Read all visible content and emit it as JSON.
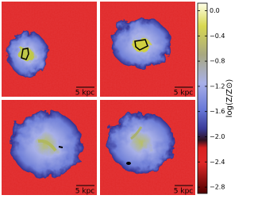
{
  "chart_data": {
    "type": "heatmap",
    "panels": [
      {
        "scale_bar": "5 kpc"
      },
      {
        "scale_bar": "5 kpc"
      },
      {
        "scale_bar": "5 kpc"
      },
      {
        "scale_bar": "5 kpc"
      }
    ],
    "colorbar": {
      "label": "log(Z/Z⊙)",
      "lim": [
        -2.9,
        0.12
      ],
      "ticks": [
        {
          "value": 0,
          "label": "0.0"
        },
        {
          "value": -0.4,
          "label": "−0.4"
        },
        {
          "value": -0.8,
          "label": "−0.8"
        },
        {
          "value": -1.2,
          "label": "−1.2"
        },
        {
          "value": -1.6,
          "label": "−1.6"
        },
        {
          "value": -2.0,
          "label": "−2.0"
        },
        {
          "value": -2.4,
          "label": "−2.4"
        },
        {
          "value": -2.8,
          "label": "−2.8"
        }
      ]
    }
  }
}
